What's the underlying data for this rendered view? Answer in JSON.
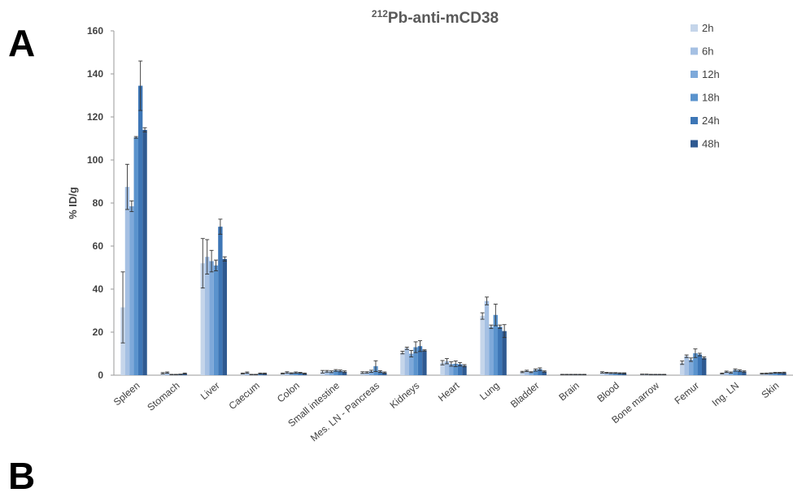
{
  "panel_labels": {
    "a": "A",
    "b": "B"
  },
  "chart_data": {
    "type": "bar",
    "title_prefix": "212",
    "title_main": "Pb-anti-mCD38",
    "ylabel": "% ID/g",
    "xlabel": "",
    "ylim": [
      0,
      160
    ],
    "yticks": [
      0,
      20,
      40,
      60,
      80,
      100,
      120,
      140,
      160
    ],
    "grid": false,
    "legend_position": "top-right",
    "categories": [
      "Spleen",
      "Stomach",
      "Liver",
      "Caecum",
      "Colon",
      "Small intestine",
      "Mes. LN - Pancreas",
      "Kidneys",
      "Heart",
      "Lung",
      "Bladder",
      "Brain",
      "Blood",
      "Bone marrow",
      "Femur",
      "Ing. LN",
      "Skin"
    ],
    "series": [
      {
        "name": "2h",
        "color": "#c5d5ea",
        "values": [
          31.5,
          0.9,
          52,
          0.8,
          0.8,
          1.6,
          1.2,
          10.5,
          5.8,
          27.5,
          1.5,
          0.3,
          1.3,
          0.4,
          5.8,
          0.8,
          0.7
        ],
        "errors": [
          16.5,
          0.3,
          11.5,
          0.2,
          0.2,
          0.6,
          0.4,
          0.6,
          1.0,
          1.5,
          0.3,
          0.1,
          0.3,
          0.1,
          0.8,
          0.2,
          0.2
        ]
      },
      {
        "name": "6h",
        "color": "#a5c0e3",
        "values": [
          87.5,
          1.2,
          55,
          1.2,
          1.3,
          1.8,
          1.3,
          12.5,
          6.5,
          34.5,
          2.0,
          0.3,
          1.1,
          0.4,
          8.8,
          1.6,
          0.8
        ],
        "errors": [
          10.5,
          0.3,
          8,
          0.3,
          0.3,
          0.4,
          0.3,
          0.5,
          1.2,
          1.8,
          0.3,
          0.1,
          0.2,
          0.1,
          0.6,
          0.3,
          0.2
        ]
      },
      {
        "name": "12h",
        "color": "#7ea9da",
        "values": [
          78.5,
          0.3,
          53,
          0.3,
          0.9,
          1.6,
          1.8,
          10,
          5.2,
          22.5,
          1.4,
          0.3,
          1.0,
          0.3,
          7.2,
          1.2,
          0.9
        ],
        "errors": [
          2.5,
          0.1,
          5,
          0.1,
          0.2,
          0.4,
          0.5,
          1.5,
          1.0,
          0.8,
          0.2,
          0.1,
          0.2,
          0.1,
          0.8,
          0.3,
          0.2
        ]
      },
      {
        "name": "18h",
        "color": "#5a93cd",
        "values": [
          110.5,
          0.3,
          51,
          0.3,
          1.2,
          2.2,
          4.2,
          13,
          5.3,
          28,
          2.4,
          0.3,
          1.0,
          0.3,
          10.2,
          2.4,
          1.1
        ],
        "errors": [
          0.4,
          0.1,
          2.5,
          0.1,
          0.3,
          0.4,
          2.5,
          2.5,
          1.3,
          5,
          0.5,
          0.1,
          0.2,
          0.1,
          2,
          0.5,
          0.2
        ]
      },
      {
        "name": "24h",
        "color": "#3d76b6",
        "values": [
          134.5,
          0.4,
          69,
          0.8,
          1.1,
          2.0,
          1.7,
          13.5,
          5.1,
          22.5,
          2.8,
          0.3,
          0.9,
          0.3,
          9.6,
          2.1,
          1.1
        ],
        "errors": [
          11.5,
          0.1,
          3.5,
          0.2,
          0.2,
          0.4,
          0.4,
          2.5,
          0.8,
          0.8,
          0.6,
          0.1,
          0.2,
          0.1,
          0.6,
          0.4,
          0.2
        ]
      },
      {
        "name": "48h",
        "color": "#2f5a91",
        "values": [
          114,
          0.8,
          54,
          0.8,
          0.8,
          1.6,
          1.2,
          11.5,
          4.4,
          20.5,
          1.7,
          0.3,
          0.9,
          0.3,
          8.0,
          1.7,
          1.2
        ],
        "errors": [
          1.0,
          0.2,
          1.0,
          0.2,
          0.2,
          0.4,
          0.3,
          0.3,
          0.5,
          3,
          0.3,
          0.1,
          0.2,
          0.1,
          0.5,
          0.3,
          0.2
        ]
      }
    ]
  }
}
